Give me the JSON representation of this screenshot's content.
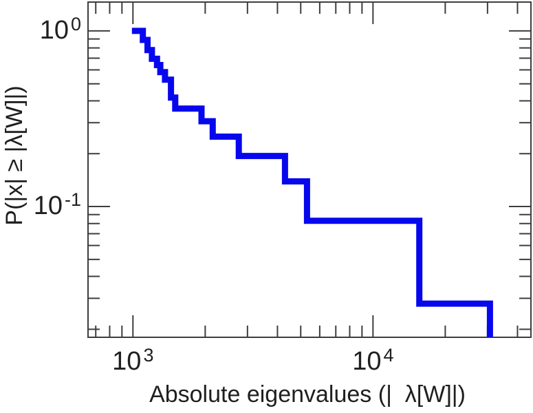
{
  "figure": {
    "background": "#ffffff",
    "axis_color": "#3d3d3d",
    "text_color": "#1f1f1f"
  },
  "chart_data": {
    "type": "line",
    "subtype": "empirical-ccdf-step-plot",
    "title": "",
    "xlabel": "Absolute eigenvalues (|  λ[W]|)",
    "ylabel": "P(|x| ≥ |λ[W]|)",
    "x_scale": "log",
    "y_scale": "log",
    "xlim": [
      650,
      45500
    ],
    "ylim": [
      0.018,
      1.46
    ],
    "grid": false,
    "legend": null,
    "tick_style": {
      "mirrored_all_sides": true,
      "direction": "in",
      "major_len": 32,
      "minor_len": 17
    },
    "x_major_ticks": [
      {
        "value": 1000,
        "base": "10",
        "exp": "3"
      },
      {
        "value": 10000,
        "base": "10",
        "exp": "4"
      }
    ],
    "x_minor_ticks": [
      700,
      800,
      900,
      2000,
      3000,
      4000,
      5000,
      6000,
      7000,
      8000,
      9000,
      20000,
      30000,
      40000
    ],
    "y_major_ticks": [
      {
        "value": 1,
        "base": "10",
        "exp": "0"
      },
      {
        "value": 0.1,
        "base": "10",
        "exp": "-1"
      }
    ],
    "y_minor_ticks": [
      0.9,
      0.8,
      0.7,
      0.6,
      0.5,
      0.4,
      0.3,
      0.2,
      0.09,
      0.08,
      0.07,
      0.06,
      0.05,
      0.04,
      0.03,
      0.02
    ],
    "series": [
      {
        "name": "ccdf-of-absolute-eigenvalues",
        "color": "#0707ee",
        "line_width": 9,
        "ccdf_steps": [
          [
            990,
            1.0
          ],
          [
            1100,
            0.889
          ],
          [
            1150,
            0.778
          ],
          [
            1200,
            0.694
          ],
          [
            1260,
            0.639
          ],
          [
            1300,
            0.583
          ],
          [
            1360,
            0.528
          ],
          [
            1440,
            0.417
          ],
          [
            1500,
            0.361
          ],
          [
            1930,
            0.306
          ],
          [
            2150,
            0.25
          ],
          [
            2760,
            0.194
          ],
          [
            4300,
            0.139
          ],
          [
            5310,
            0.083
          ],
          [
            15600,
            0.028
          ],
          [
            30700,
            0
          ]
        ]
      }
    ]
  }
}
